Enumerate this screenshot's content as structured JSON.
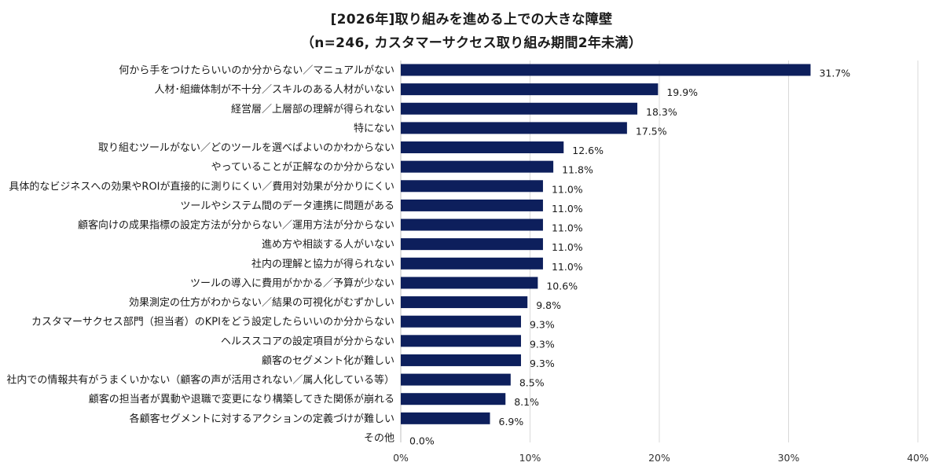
{
  "chart_data": {
    "type": "bar",
    "orientation": "horizontal",
    "title": "[2026年]取り組みを進める上での大きな障壁",
    "subtitle": "（n=246, カスタマーサクセス取り組み期間2年未満）",
    "categories": [
      "何から手をつけたらいいのか分からない／マニュアルがない",
      "人材･組織体制が不十分／スキルのある人材がいない",
      "経営層／上層部の理解が得られない",
      "特にない",
      "取り組むツールがない／どのツールを選べばよいのかわからない",
      "やっていることが正解なのか分からない",
      "具体的なビジネスへの効果やROIが直接的に測りにくい／費用対効果が分かりにくい",
      "ツールやシステム間のデータ連携に問題がある",
      "顧客向けの成果指標の設定方法が分からない／運用方法が分からない",
      "進め方や相談する人がいない",
      "社内の理解と協力が得られない",
      "ツールの導入に費用がかかる／予算が少ない",
      "効果測定の仕方がわからない／結果の可視化がむずかしい",
      "カスタマーサクセス部門（担当者）のKPIをどう設定したらいいのか分からない",
      "ヘルススコアの設定項目が分からない",
      "顧客のセグメント化が難しい",
      "社内での情報共有がうまくいかない（顧客の声が活用されない／属人化している等）",
      "顧客の担当者が異動や退職で変更になり構築してきた関係が崩れる",
      "各顧客セグメントに対するアクションの定義づけが難しい",
      "その他"
    ],
    "values": [
      31.7,
      19.9,
      18.3,
      17.5,
      12.6,
      11.8,
      11.0,
      11.0,
      11.0,
      11.0,
      11.0,
      10.6,
      9.8,
      9.3,
      9.3,
      9.3,
      8.5,
      8.1,
      6.9,
      0.0
    ],
    "value_labels": [
      "31.7%",
      "19.9%",
      "18.3%",
      "17.5%",
      "12.6%",
      "11.8%",
      "11.0%",
      "11.0%",
      "11.0%",
      "11.0%",
      "11.0%",
      "10.6%",
      "9.8%",
      "9.3%",
      "9.3%",
      "9.3%",
      "8.5%",
      "8.1%",
      "6.9%",
      "0.0%"
    ],
    "xlim": [
      0,
      40
    ],
    "xticks": [
      0,
      10,
      20,
      30,
      40
    ],
    "xtick_labels": [
      "0%",
      "10%",
      "20%",
      "30%",
      "40%"
    ],
    "grid": "vertical",
    "bar_color": "#0d1f5c",
    "grid_color": "#d9d9d9"
  }
}
